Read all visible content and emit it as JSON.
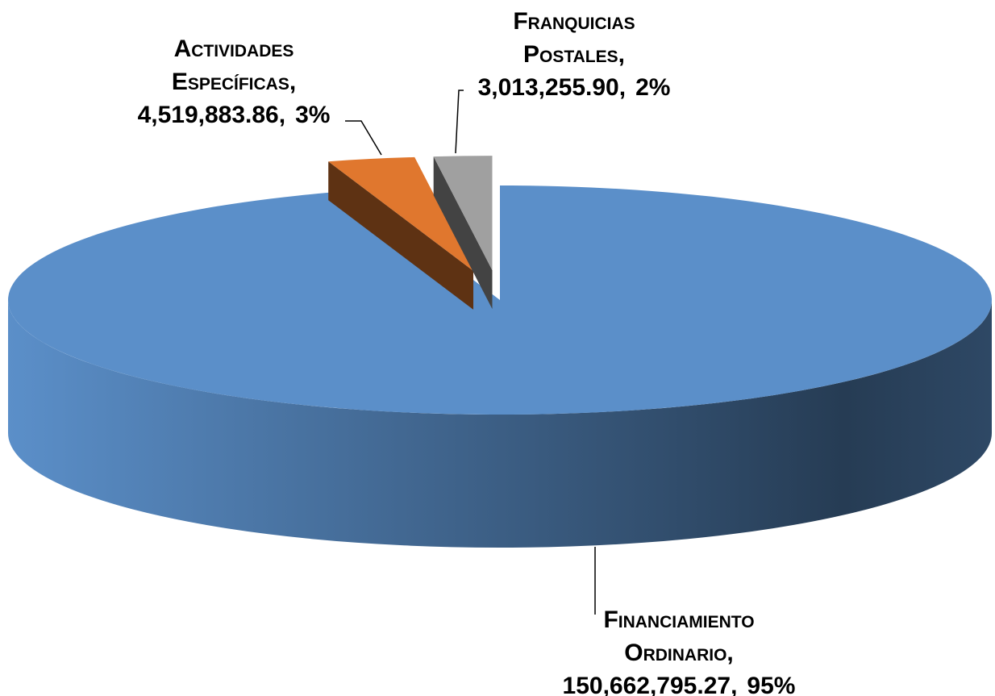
{
  "chart_data": {
    "type": "pie3d",
    "categories": [
      "Financiamiento Ordinario",
      "Actividades Específicas",
      "Franquicias Postales"
    ],
    "values": [
      150662795.27,
      4519883.86,
      3013255.9
    ],
    "value_labels": [
      "150,662,795.27",
      "4,519,883.86",
      "3,013,255.90"
    ],
    "percentages": [
      95,
      3,
      2
    ],
    "percentage_labels": [
      "95%",
      "3%",
      "2%"
    ],
    "separator": ",",
    "colors": [
      "#5b8fc9",
      "#e0772e",
      "#a0a0a0"
    ]
  }
}
